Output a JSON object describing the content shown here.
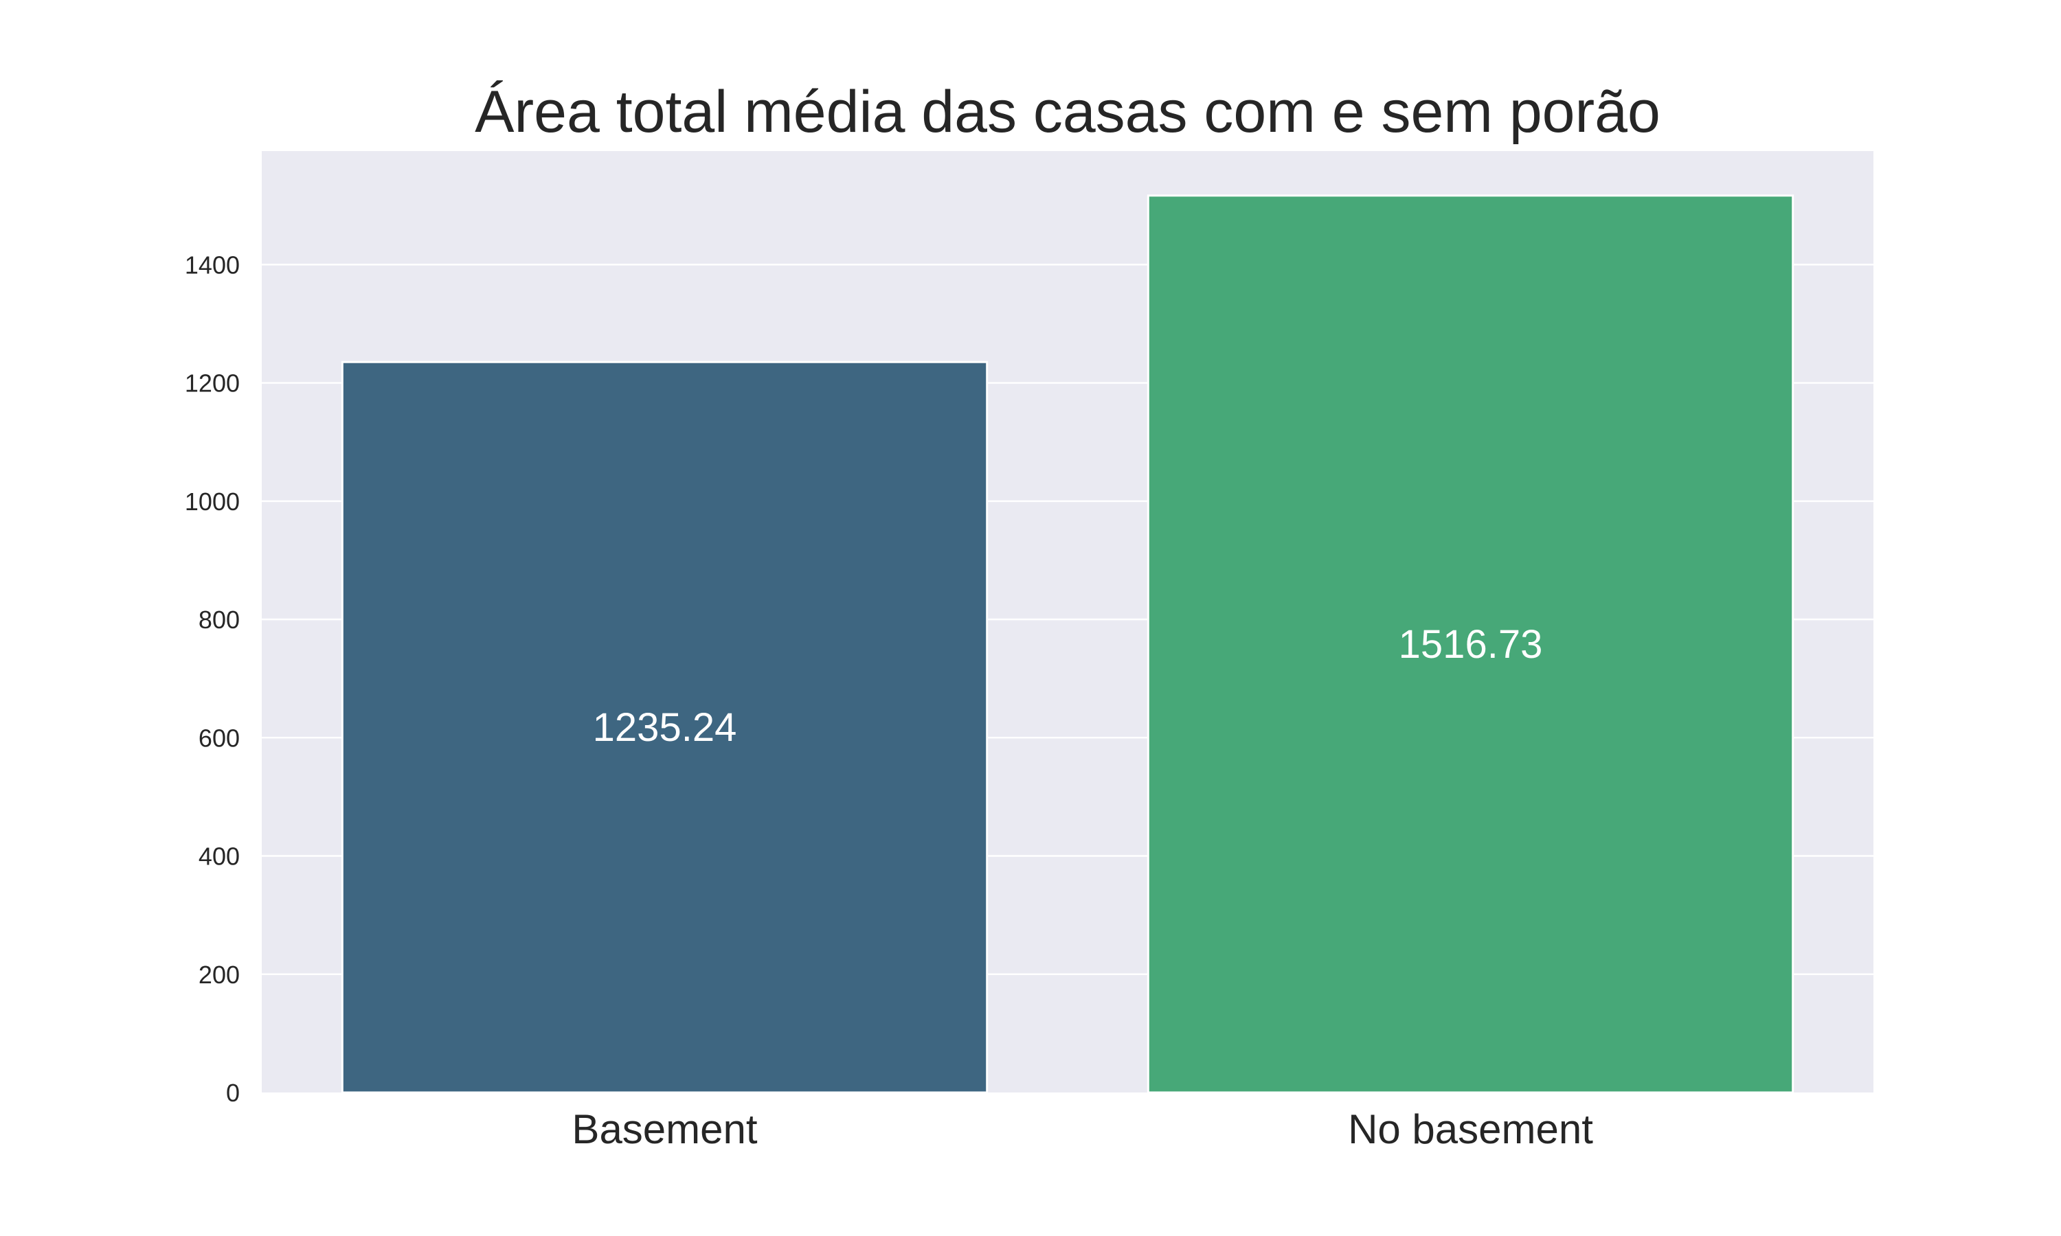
{
  "chart_data": {
    "type": "bar",
    "title": "Área total média das casas com e sem porão",
    "xlabel": "",
    "ylabel": "",
    "categories": [
      "Basement",
      "No basement"
    ],
    "values": [
      1235.24,
      1516.73
    ],
    "data_labels": [
      "1235.24",
      "1516.73"
    ],
    "colors": [
      "#3e6681",
      "#47a878"
    ],
    "ylim": [
      0,
      1592
    ],
    "yticks": [
      0,
      200,
      400,
      600,
      800,
      1000,
      1200,
      1400
    ],
    "ytick_labels": [
      "0",
      "200",
      "400",
      "600",
      "800",
      "1000",
      "1200",
      "1400"
    ],
    "grid": true,
    "legend": "none",
    "plot_background": "#eaeaf2",
    "grid_color": "#ffffff"
  }
}
